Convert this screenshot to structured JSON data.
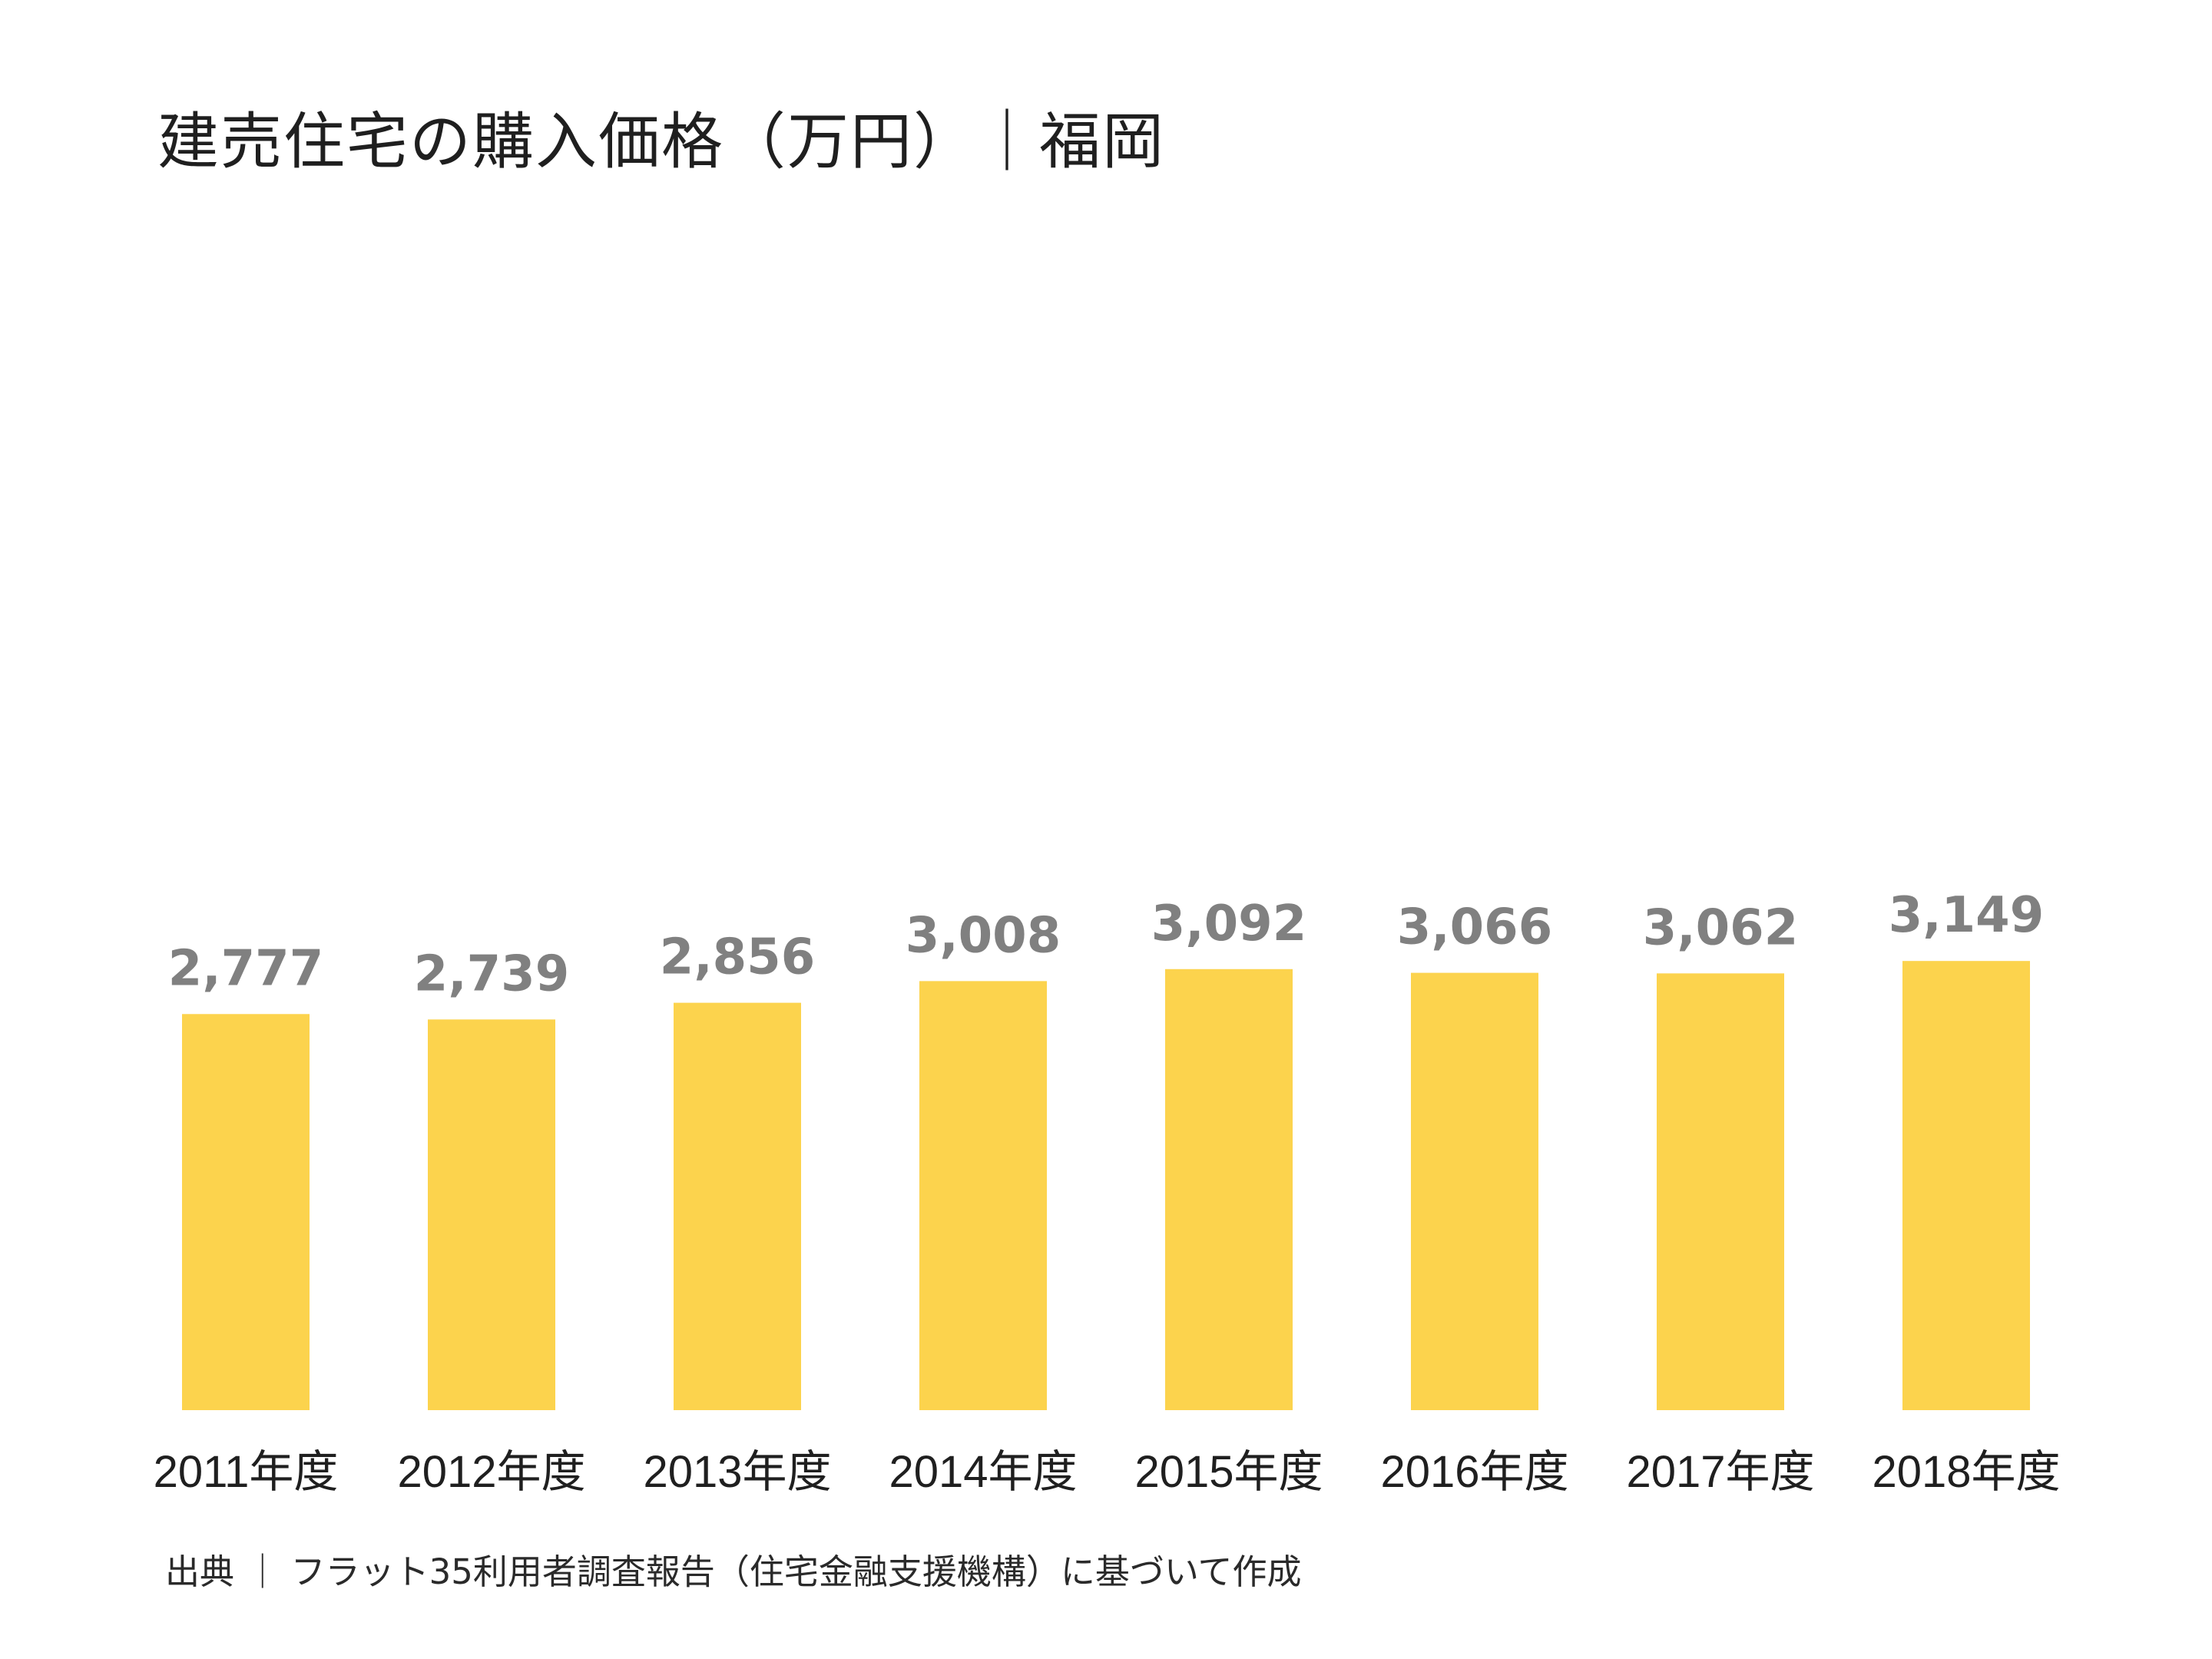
{
  "chart_data": {
    "type": "bar",
    "title": "建売住宅の購入価格（万円）｜福岡",
    "categories": [
      "2011年度",
      "2012年度",
      "2013年度",
      "2014年度",
      "2015年度",
      "2016年度",
      "2017年度",
      "2018年度"
    ],
    "values": [
      2777,
      2739,
      2856,
      3008,
      3092,
      3066,
      3062,
      3149
    ],
    "value_labels": [
      "2,777",
      "2,739",
      "2,856",
      "3,008",
      "3,092",
      "3,066",
      "3,062",
      "3,149"
    ],
    "xlabel": "",
    "ylabel": "",
    "ylim": [
      0,
      5600
    ],
    "grid": false,
    "legend": "none",
    "bar_color": "#FCD34D",
    "value_label_color": "#808080"
  },
  "source_note": "出典 ｜ フラット35利用者調査報告（住宅金融支援機構）に基づいて作成"
}
